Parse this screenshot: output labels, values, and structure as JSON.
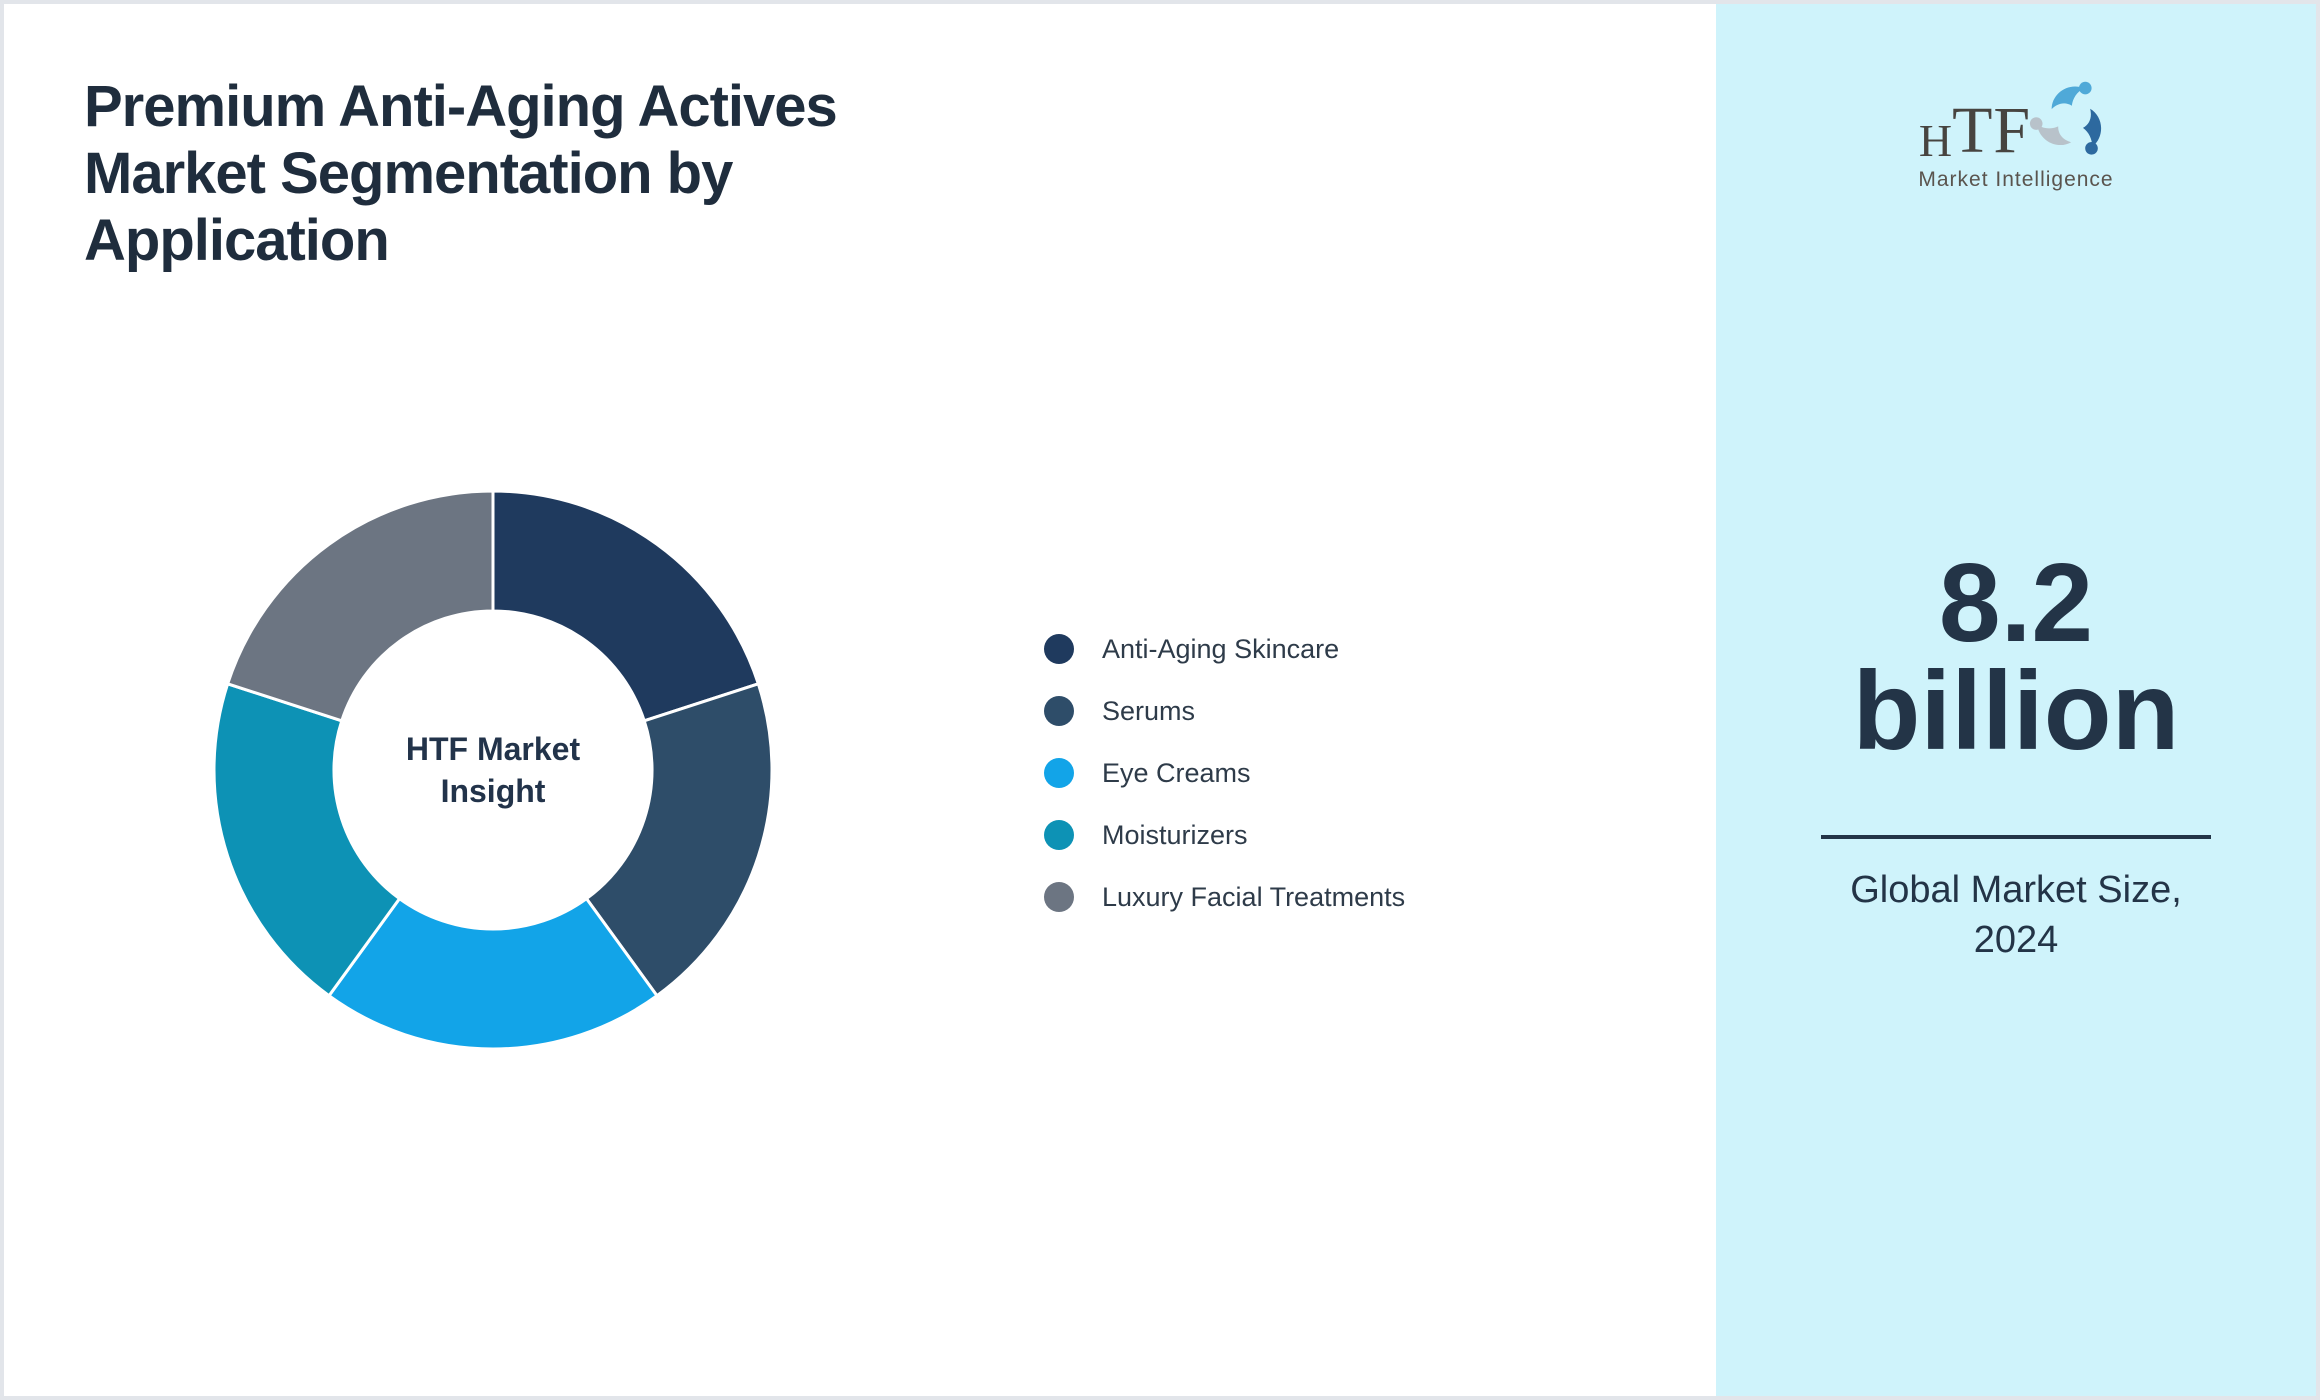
{
  "theme": {
    "panel_bg": "#CFF3FB",
    "page_bg": "#FFFFFF",
    "border_col": "#E2E5EA",
    "text_primary": "#1F2D3D",
    "text_panel": "#233447",
    "legend_text": "#2E3B49"
  },
  "header": {
    "title_lines": [
      "Premium Anti-Aging Actives",
      "Market Segmentation by",
      "Application"
    ]
  },
  "chart_data": {
    "type": "pie",
    "subtype": "donut",
    "labels": [
      "Anti-Aging Skincare",
      "Serums",
      "Eye Creams",
      "Moisturizers",
      "Luxury Facial Treatments"
    ],
    "values": [
      20,
      20,
      20,
      20,
      20
    ],
    "colors": [
      "#1F3A5E",
      "#2E4D69",
      "#12A4E8",
      "#0D92B5",
      "#6C7582"
    ],
    "center_label_lines": [
      "HTF Market",
      "Insight"
    ],
    "start_angle_deg": 0,
    "direction": "clockwise",
    "hole_ratio": 0.57,
    "separator_color": "#FFFFFF",
    "legend_position": "right"
  },
  "sidebar": {
    "logo": {
      "h": "H",
      "tf": "TF",
      "subtitle": "Market Intelligence",
      "icon": "triskelion-dolphins-mark",
      "icon_colors": [
        "#4FA9D8",
        "#2D699F",
        "#B8C2CA"
      ]
    },
    "value": "8.2",
    "unit": "billion",
    "caption": "Global Market Size, 2024"
  }
}
